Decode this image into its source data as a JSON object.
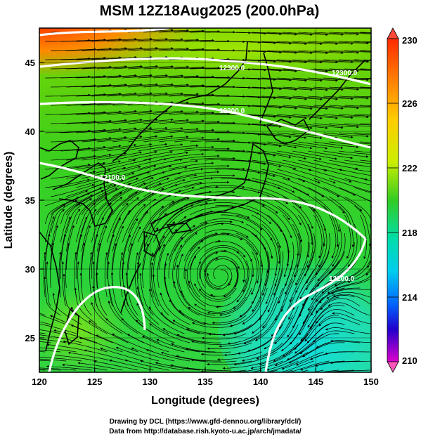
{
  "title": "MSM 12Z18Aug2025 (200.0hPa)",
  "xlabel": "Longitude (degrees)",
  "ylabel": "Latitude  (degrees)",
  "x_ticks": [
    "120",
    "125",
    "130",
    "135",
    "140",
    "145",
    "150"
  ],
  "y_ticks": [
    "25",
    "30",
    "35",
    "40",
    "45"
  ],
  "colorbar_ticks": [
    "230",
    "226",
    "222",
    "218",
    "214",
    "210"
  ],
  "contour_labels": [
    "12300.0",
    "12300.0",
    "12200.0",
    "12100.0",
    "12200.0"
  ],
  "credits": {
    "line1": "Drawing by DCL (https://www.gfd-dennou.org/library/dcl/)",
    "line2": "Data from http://database.rish.kyoto-u.ac.jp/arch/jmadata/"
  },
  "map": {
    "lon_range": [
      120,
      150
    ],
    "lat_range": [
      22.5,
      47.5
    ],
    "grid": true,
    "shading_variable": "temperature",
    "colorbar_range": [
      210,
      230
    ],
    "colors": {
      "warm": "#ff4a00",
      "mid": "#33cc22",
      "cool": "#11dddd",
      "contour": "#ffffff",
      "coast": "#000000"
    }
  }
}
